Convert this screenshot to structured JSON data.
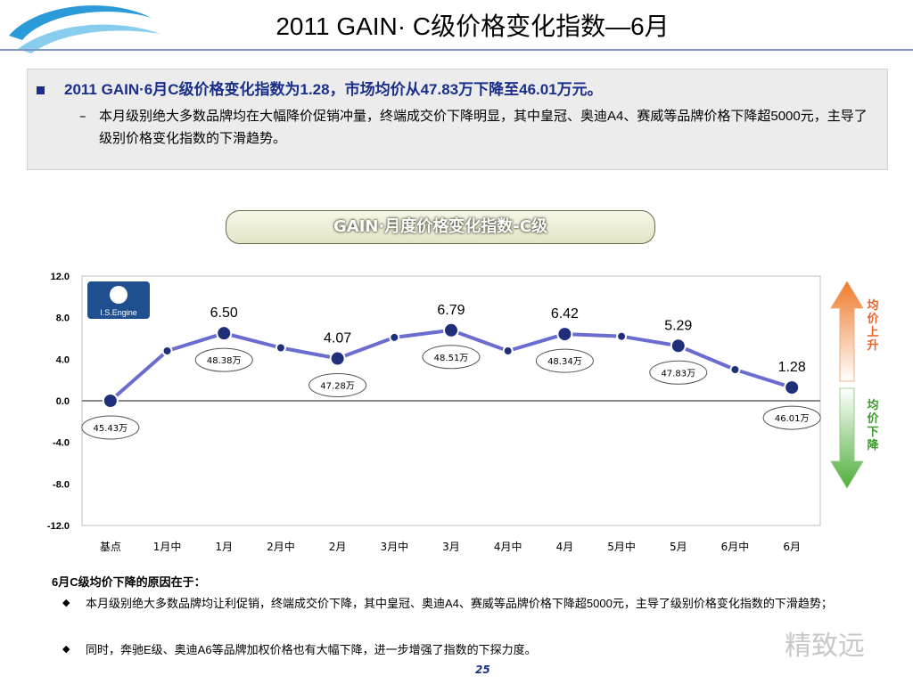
{
  "page": {
    "title": "2011 GAIN· C级价格变化指数—6月",
    "summary_main": "2011 GAIN·6月C级价格变化指数为1.28，市场均价从47.83万下降至46.01万元。",
    "summary_sub": "本月级别绝大多数品牌均在大幅降价促销冲量，终端成交价下降明显，其中皇冠、奥迪A4、赛威等品牌价格下降超5000元，主导了级别价格变化指数的下滑趋势。",
    "chart_heading": "GAIN·月度价格变化指数-C级",
    "logo_text": "I.S.Engine",
    "legend_up": "均价上升",
    "legend_down": "均价下降",
    "reason_heading": "6月C级均价下降的原因在于：",
    "reason_1": "本月级别绝大多数品牌均让利促销，终端成交价下降，其中皇冠、奥迪A4、赛威等品牌价格下降超5000元，主导了级别价格变化指数的下滑趋势；",
    "reason_2": "同时，奔驰E级、奥迪A6等品牌加权价格也有大幅下降，进一步增强了指数的下探力度。",
    "page_number": "25",
    "watermark": "精致远",
    "colors": {
      "line": "#6a6ccf",
      "marker": "#1f2f7a",
      "up": "#f08a3a",
      "down": "#5fba4a",
      "accent": "#1a2f8a"
    }
  },
  "chart_data": {
    "type": "line",
    "categories": [
      "基点",
      "1月中",
      "1月",
      "2月中",
      "2月",
      "3月中",
      "3月",
      "4月中",
      "4月",
      "5月中",
      "5月",
      "6月中",
      "6月"
    ],
    "values": [
      0.0,
      4.8,
      6.5,
      5.1,
      4.07,
      6.1,
      6.79,
      4.8,
      6.42,
      6.2,
      5.29,
      3.0,
      1.28
    ],
    "value_labels": [
      {
        "index": 2,
        "text": "6.50"
      },
      {
        "index": 4,
        "text": "4.07"
      },
      {
        "index": 6,
        "text": "6.79"
      },
      {
        "index": 8,
        "text": "6.42"
      },
      {
        "index": 10,
        "text": "5.29"
      },
      {
        "index": 12,
        "text": "1.28"
      }
    ],
    "price_callouts": [
      {
        "index": 0,
        "text": "45.43万"
      },
      {
        "index": 2,
        "text": "48.38万"
      },
      {
        "index": 4,
        "text": "47.28万"
      },
      {
        "index": 6,
        "text": "48.51万"
      },
      {
        "index": 8,
        "text": "48.34万"
      },
      {
        "index": 10,
        "text": "47.83万"
      },
      {
        "index": 12,
        "text": "46.01万"
      }
    ],
    "ylim": [
      -12,
      12
    ],
    "yticks": [
      "12.0",
      "8.0",
      "4.0",
      "0.0",
      "-4.0",
      "-8.0",
      "-12.0"
    ],
    "grid": false
  }
}
